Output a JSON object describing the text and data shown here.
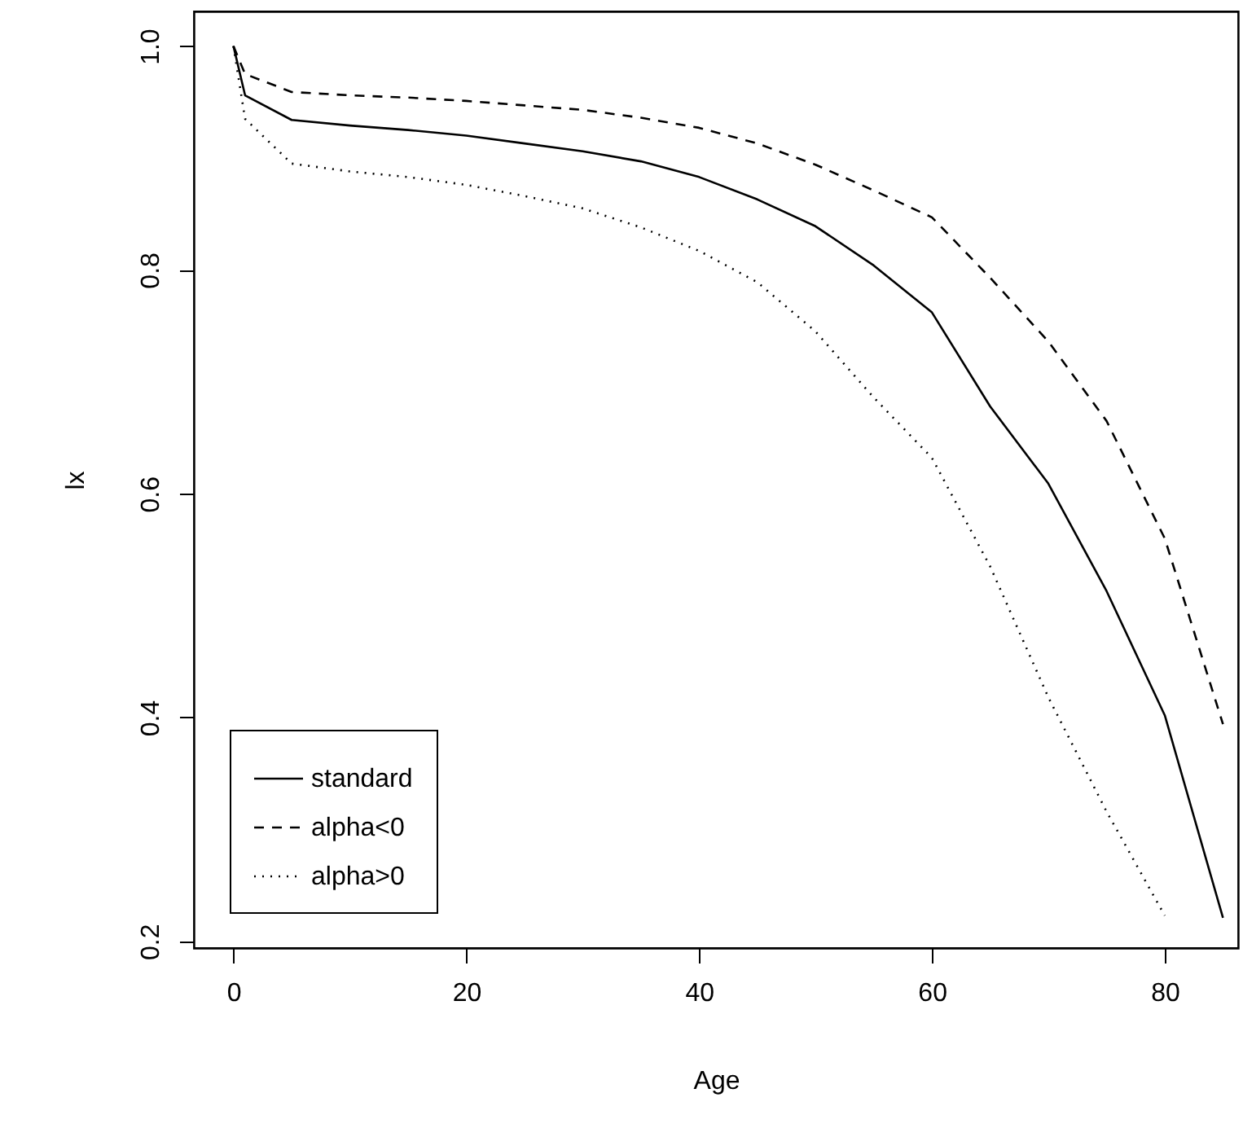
{
  "chart_data": {
    "type": "line",
    "xlabel": "Age",
    "ylabel": "lx",
    "x": [
      0,
      1,
      5,
      10,
      15,
      20,
      25,
      30,
      35,
      40,
      45,
      50,
      55,
      60,
      65,
      70,
      75,
      80,
      85
    ],
    "series": [
      {
        "name": "standard",
        "color": "#000000",
        "line_style": "solid",
        "values": [
          1.0,
          0.956,
          0.934,
          0.929,
          0.925,
          0.92,
          0.913,
          0.906,
          0.897,
          0.883,
          0.863,
          0.839,
          0.804,
          0.762,
          0.678,
          0.609,
          0.513,
          0.402,
          0.221
        ]
      },
      {
        "name": "alpha<0",
        "color": "#000000",
        "line_style": "dashed",
        "values": [
          1.0,
          0.975,
          0.959,
          0.956,
          0.954,
          0.951,
          0.947,
          0.943,
          0.936,
          0.927,
          0.913,
          0.894,
          0.871,
          0.847,
          0.793,
          0.736,
          0.665,
          0.56,
          0.394
        ]
      },
      {
        "name": "alpha>0",
        "color": "#000000",
        "line_style": "dotted",
        "values": [
          1.0,
          0.935,
          0.895,
          0.888,
          0.883,
          0.876,
          0.866,
          0.855,
          0.838,
          0.817,
          0.789,
          0.745,
          0.686,
          0.632,
          0.535,
          0.418,
          0.316,
          0.223,
          null
        ]
      }
    ],
    "xlim": [
      -3.4,
      86.3
    ],
    "ylim": [
      0.194,
      1.031
    ],
    "xticks": [
      0,
      20,
      40,
      60,
      80
    ],
    "yticks": [
      0.2,
      0.4,
      0.6,
      0.8,
      {
        "value": 1.0,
        "label": "1.0"
      }
    ],
    "grid": false,
    "legend": "bottom left"
  }
}
